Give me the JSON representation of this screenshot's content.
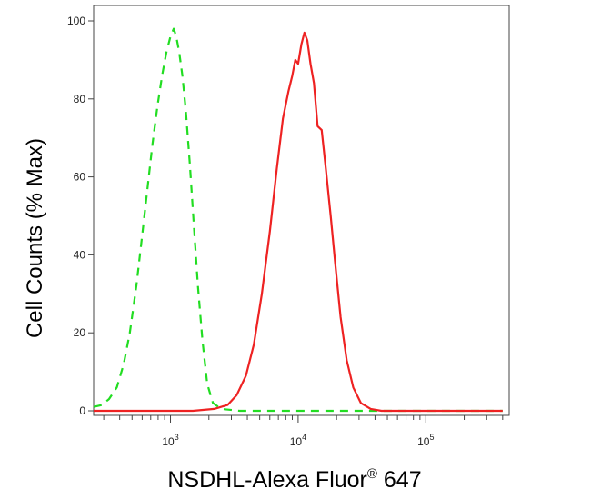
{
  "chart_data": {
    "type": "line",
    "xlabel": "NSDHL-Alexa Fluor",
    "xlabel_sup": "®",
    "xlabel_suffix": " 647",
    "ylabel": "Cell Counts (% Max)",
    "x_scale": "log",
    "xlim": [
      250,
      450000
    ],
    "ylim": [
      0,
      100
    ],
    "y_ticks": [
      0,
      20,
      40,
      60,
      80,
      100
    ],
    "x_ticks": [
      {
        "base": "10",
        "exp": "3",
        "value": 1000
      },
      {
        "base": "10",
        "exp": "4",
        "value": 10000
      },
      {
        "base": "10",
        "exp": "5",
        "value": 100000
      }
    ],
    "grid": false,
    "legend": "none",
    "series": [
      {
        "color": "#22dd22",
        "style": "dashed",
        "points": [
          [
            250,
            1
          ],
          [
            290,
            1.5
          ],
          [
            330,
            3
          ],
          [
            380,
            6
          ],
          [
            430,
            12
          ],
          [
            480,
            20
          ],
          [
            540,
            32
          ],
          [
            600,
            45
          ],
          [
            660,
            57
          ],
          [
            720,
            68
          ],
          [
            790,
            78
          ],
          [
            860,
            86
          ],
          [
            930,
            92
          ],
          [
            1000,
            96
          ],
          [
            1060,
            98
          ],
          [
            1110,
            96
          ],
          [
            1170,
            92
          ],
          [
            1240,
            86
          ],
          [
            1320,
            77
          ],
          [
            1420,
            63
          ],
          [
            1520,
            48
          ],
          [
            1640,
            32
          ],
          [
            1780,
            18
          ],
          [
            1940,
            7
          ],
          [
            2150,
            2
          ],
          [
            2500,
            0.5
          ],
          [
            3500,
            0
          ],
          [
            100000,
            0
          ],
          [
            400000,
            0
          ]
        ]
      },
      {
        "color": "#ee2222",
        "style": "solid",
        "points": [
          [
            250,
            0
          ],
          [
            1500,
            0
          ],
          [
            2200,
            0.5
          ],
          [
            2800,
            1.5
          ],
          [
            3300,
            4
          ],
          [
            3900,
            9
          ],
          [
            4500,
            17
          ],
          [
            5200,
            30
          ],
          [
            6000,
            46
          ],
          [
            6800,
            62
          ],
          [
            7600,
            75
          ],
          [
            8400,
            82
          ],
          [
            9000,
            86
          ],
          [
            9500,
            90
          ],
          [
            10000,
            89
          ],
          [
            10600,
            94
          ],
          [
            11200,
            97
          ],
          [
            11800,
            95
          ],
          [
            12500,
            89
          ],
          [
            13300,
            84
          ],
          [
            14200,
            73
          ],
          [
            15300,
            72
          ],
          [
            16500,
            62
          ],
          [
            18000,
            50
          ],
          [
            19500,
            38
          ],
          [
            21500,
            24
          ],
          [
            24000,
            13
          ],
          [
            27000,
            6
          ],
          [
            31000,
            2
          ],
          [
            37000,
            0.5
          ],
          [
            45000,
            0
          ],
          [
            400000,
            0
          ]
        ]
      }
    ]
  }
}
